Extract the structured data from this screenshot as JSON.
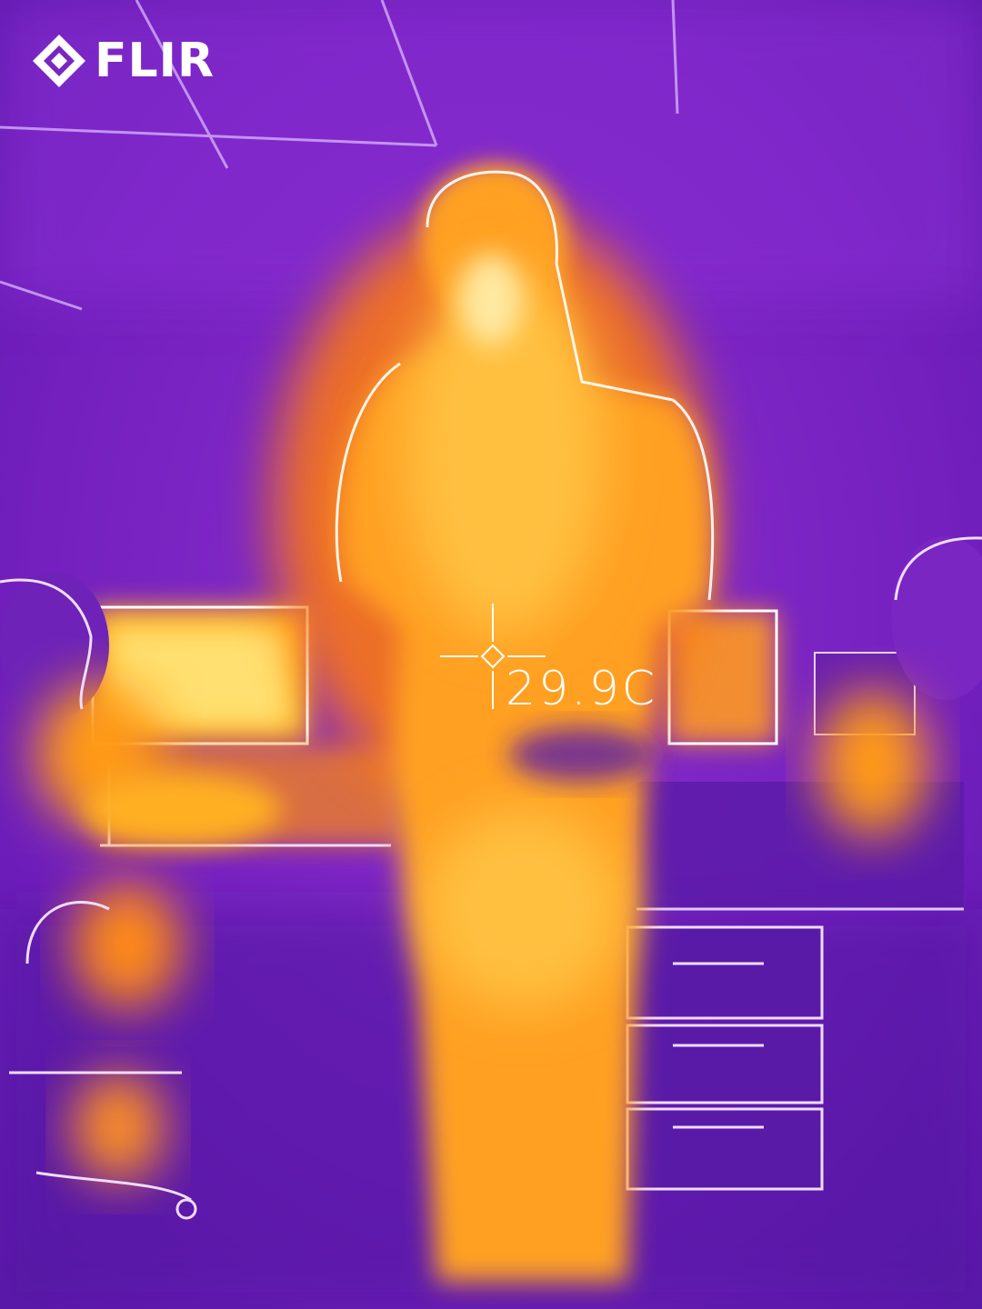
{
  "logo": {
    "text": "FLIR",
    "icon": "flir-diamond-icon"
  },
  "measurement": {
    "spot_temperature": "29.9C",
    "icon": "crosshair-icon"
  },
  "palette": {
    "cold": "#6a1fb0",
    "cool": "#8a2bd0",
    "warm": "#ff8c10",
    "hot": "#ffb020",
    "hottest": "#fff0a0",
    "edge": "#ffffff"
  }
}
